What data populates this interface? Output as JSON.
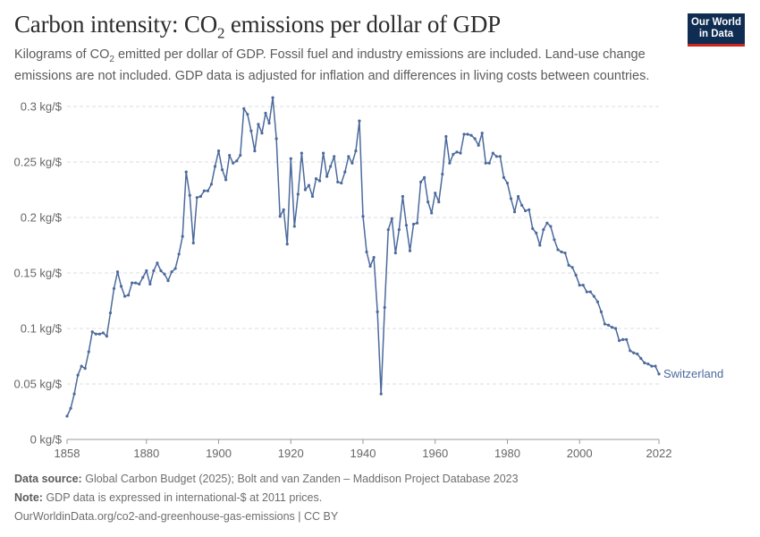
{
  "header": {
    "title_main": "Carbon intensity: CO",
    "title_sub": "2",
    "title_tail": " emissions per dollar of GDP",
    "subtitle_a": "Kilograms of CO",
    "subtitle_sub": "2",
    "subtitle_b": " emitted per dollar of GDP. Fossil fuel and industry emissions are included. Land-use change emissions are not included. GDP data is adjusted for inflation and differences in living costs between countries."
  },
  "logo": {
    "line1": "Our World",
    "line2": "in Data",
    "bg": "#0f2c52",
    "accent": "#ce261e"
  },
  "footer": {
    "source_label": "Data source:",
    "source_text": "Global Carbon Budget (2025); Bolt and van Zanden – Maddison Project Database 2023",
    "note_label": "Note:",
    "note_text": "GDP data is expressed in international-$ at 2011 prices.",
    "url": "OurWorldinData.org/co2-and-greenhouse-gas-emissions | CC BY"
  },
  "chart_data": {
    "type": "line",
    "xlim": [
      1858,
      2022
    ],
    "ylim": [
      0,
      0.3
    ],
    "y_ticks": [
      0,
      0.05,
      0.1,
      0.15,
      0.2,
      0.25,
      0.3
    ],
    "y_tick_labels": [
      "0 kg/$",
      "0.05 kg/$",
      "0.1 kg/$",
      "0.15 kg/$",
      "0.2 kg/$",
      "0.25 kg/$",
      "0.3 kg/$"
    ],
    "x_ticks": [
      1858,
      1880,
      1900,
      1920,
      1940,
      1960,
      1980,
      2000,
      2022
    ],
    "x_tick_labels": [
      "1858",
      "1880",
      "1900",
      "1920",
      "1940",
      "1960",
      "1980",
      "2000",
      "2022"
    ],
    "grid": true,
    "line_color": "#4c6a9c",
    "series": [
      {
        "name": "Switzerland",
        "x": [
          1858,
          1859,
          1860,
          1861,
          1862,
          1863,
          1864,
          1865,
          1866,
          1867,
          1868,
          1869,
          1870,
          1871,
          1872,
          1873,
          1874,
          1875,
          1876,
          1877,
          1878,
          1879,
          1880,
          1881,
          1882,
          1883,
          1884,
          1885,
          1886,
          1887,
          1888,
          1889,
          1890,
          1891,
          1892,
          1893,
          1894,
          1895,
          1896,
          1897,
          1898,
          1899,
          1900,
          1901,
          1902,
          1903,
          1904,
          1905,
          1906,
          1907,
          1908,
          1909,
          1910,
          1911,
          1912,
          1913,
          1914,
          1915,
          1916,
          1917,
          1918,
          1919,
          1920,
          1921,
          1922,
          1923,
          1924,
          1925,
          1926,
          1927,
          1928,
          1929,
          1930,
          1931,
          1932,
          1933,
          1934,
          1935,
          1936,
          1937,
          1938,
          1939,
          1940,
          1941,
          1942,
          1943,
          1944,
          1945,
          1946,
          1947,
          1948,
          1949,
          1950,
          1951,
          1952,
          1953,
          1954,
          1955,
          1956,
          1957,
          1958,
          1959,
          1960,
          1961,
          1962,
          1963,
          1964,
          1965,
          1966,
          1967,
          1968,
          1969,
          1970,
          1971,
          1972,
          1973,
          1974,
          1975,
          1976,
          1977,
          1978,
          1979,
          1980,
          1981,
          1982,
          1983,
          1984,
          1985,
          1986,
          1987,
          1988,
          1989,
          1990,
          1991,
          1992,
          1993,
          1994,
          1995,
          1996,
          1997,
          1998,
          1999,
          2000,
          2001,
          2002,
          2003,
          2004,
          2005,
          2006,
          2007,
          2008,
          2009,
          2010,
          2011,
          2012,
          2013,
          2014,
          2015,
          2016,
          2017,
          2018,
          2019,
          2020,
          2021,
          2022
        ],
        "y": [
          0.021,
          0.028,
          0.041,
          0.058,
          0.066,
          0.064,
          0.079,
          0.097,
          0.095,
          0.095,
          0.096,
          0.093,
          0.114,
          0.136,
          0.151,
          0.138,
          0.129,
          0.13,
          0.141,
          0.141,
          0.14,
          0.146,
          0.152,
          0.14,
          0.152,
          0.159,
          0.152,
          0.149,
          0.143,
          0.151,
          0.154,
          0.167,
          0.183,
          0.241,
          0.22,
          0.177,
          0.218,
          0.219,
          0.224,
          0.224,
          0.23,
          0.246,
          0.26,
          0.243,
          0.234,
          0.256,
          0.249,
          0.251,
          0.256,
          0.298,
          0.293,
          0.278,
          0.26,
          0.284,
          0.276,
          0.294,
          0.285,
          0.308,
          0.271,
          0.201,
          0.207,
          0.176,
          0.253,
          0.192,
          0.221,
          0.258,
          0.225,
          0.229,
          0.219,
          0.235,
          0.233,
          0.258,
          0.237,
          0.246,
          0.255,
          0.232,
          0.231,
          0.241,
          0.255,
          0.249,
          0.26,
          0.287,
          0.201,
          0.169,
          0.156,
          0.164,
          0.115,
          0.041,
          0.119,
          0.189,
          0.199,
          0.168,
          0.189,
          0.219,
          0.193,
          0.17,
          0.194,
          0.195,
          0.232,
          0.236,
          0.214,
          0.204,
          0.222,
          0.214,
          0.239,
          0.273,
          0.249,
          0.257,
          0.259,
          0.258,
          0.275,
          0.275,
          0.274,
          0.271,
          0.265,
          0.276,
          0.249,
          0.249,
          0.258,
          0.255,
          0.255,
          0.236,
          0.231,
          0.217,
          0.205,
          0.219,
          0.211,
          0.206,
          0.207,
          0.19,
          0.186,
          0.175,
          0.189,
          0.195,
          0.192,
          0.18,
          0.171,
          0.169,
          0.168,
          0.157,
          0.155,
          0.148,
          0.139,
          0.139,
          0.133,
          0.133,
          0.129,
          0.124,
          0.115,
          0.104,
          0.103,
          0.101,
          0.1,
          0.089,
          0.09,
          0.09,
          0.08,
          0.078,
          0.077,
          0.073,
          0.069,
          0.068,
          0.066,
          0.066,
          0.059
        ]
      }
    ]
  }
}
